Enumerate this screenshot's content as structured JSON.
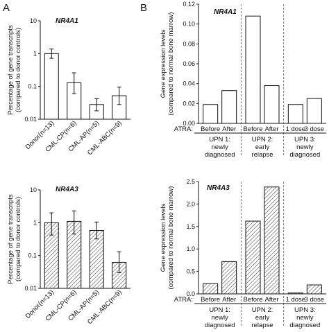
{
  "panels": {
    "left_letter": "A",
    "right_letter": "B"
  },
  "chart_data": [
    {
      "id": "A1",
      "type": "bar",
      "gene": "NR4A1",
      "ylabel_line1": "Percentage of gene transcripts",
      "ylabel_line2": "(compared to donor controls)",
      "scale": "log",
      "ylim": [
        0.01,
        10
      ],
      "ticks": [
        {
          "v": 10,
          "t": "10"
        },
        {
          "v": 1,
          "t": "1"
        },
        {
          "v": 0.1,
          "t": "0.1"
        },
        {
          "v": 0.01,
          "t": "0.01"
        }
      ],
      "categories": [
        "Donor(n=13)",
        "CML-CP(n=6)",
        "CML-AP(n=5)",
        "CML-ABC(n=9)"
      ],
      "values": [
        1.0,
        0.13,
        0.028,
        0.052
      ],
      "err_upper": [
        1.38,
        0.26,
        0.042,
        0.095
      ],
      "err_lower": [
        0.72,
        0.06,
        0.018,
        0.028
      ],
      "style": "open"
    },
    {
      "id": "A2",
      "type": "bar",
      "gene": "NR4A3",
      "ylabel_line1": "Percentage of gene transcripts",
      "ylabel_line2": "(compared to donor controls)",
      "scale": "log",
      "ylim": [
        0.01,
        10
      ],
      "ticks": [
        {
          "v": 10,
          "t": "10"
        },
        {
          "v": 1,
          "t": "1"
        },
        {
          "v": 0.1,
          "t": "0.1"
        },
        {
          "v": 0.01,
          "t": "0.01"
        }
      ],
      "categories": [
        "Donor(n=13)",
        "CML-CP(n=6)",
        "CML-AP(n=5)",
        "CML-ABC(n=9)"
      ],
      "values": [
        1.0,
        1.1,
        0.58,
        0.062
      ],
      "err_upper": [
        2.0,
        2.3,
        1.05,
        0.13
      ],
      "err_lower": [
        0.42,
        0.45,
        0.32,
        0.03
      ],
      "style": "hatched"
    },
    {
      "id": "B1",
      "type": "bar",
      "gene": "NR4A1",
      "ylabel_line1": "Gene expression levels",
      "ylabel_line2": "(compared to normal bone marrow)",
      "scale": "linear",
      "ylim": [
        0,
        0.12
      ],
      "ticks": [
        {
          "v": 0.12,
          "t": "0.12"
        },
        {
          "v": 0.1,
          "t": "0.10"
        },
        {
          "v": 0.08,
          "t": "0.08"
        },
        {
          "v": 0.06,
          "t": "0.06"
        },
        {
          "v": 0.04,
          "t": "0.04"
        },
        {
          "v": 0.02,
          "t": "0.02"
        },
        {
          "v": 0,
          "t": "0.00"
        }
      ],
      "atra_label": "ATRA:",
      "subcategories": [
        "Before",
        "After",
        "Before",
        "After",
        "1 dose",
        "3 dose"
      ],
      "values": [
        0.019,
        0.033,
        0.108,
        0.038,
        0.019,
        0.025
      ],
      "groups": [
        {
          "lines": [
            "UPN 1:",
            "newly",
            "diagnosed"
          ]
        },
        {
          "lines": [
            "UPN 2:",
            "early",
            "relapse"
          ]
        },
        {
          "lines": [
            "UPN 3:",
            "newly",
            "diagnosed"
          ]
        }
      ],
      "style": "open"
    },
    {
      "id": "B2",
      "type": "bar",
      "gene": "NR4A3",
      "ylabel_line1": "Gene expression levels",
      "ylabel_line2": "(compared to normal bone marrow)",
      "scale": "linear",
      "ylim": [
        0,
        2.5
      ],
      "ticks": [
        {
          "v": 2.5,
          "t": "2.5"
        },
        {
          "v": 2.0,
          "t": "2.0"
        },
        {
          "v": 1.5,
          "t": "1.5"
        },
        {
          "v": 1.0,
          "t": "1.0"
        },
        {
          "v": 0.5,
          "t": "0.5"
        },
        {
          "v": 0,
          "t": "0.0"
        }
      ],
      "atra_label": "ATRA:",
      "subcategories": [
        "Before",
        "After",
        "Before",
        "After",
        "1 dose",
        "3 dose"
      ],
      "values": [
        0.23,
        0.72,
        1.62,
        2.38,
        0.02,
        0.2
      ],
      "groups": [
        {
          "lines": [
            "UPN 1:",
            "newly",
            "diagnosed"
          ]
        },
        {
          "lines": [
            "UPN 2:",
            "early",
            "relapse"
          ]
        },
        {
          "lines": [
            "UPN 3:",
            "newly",
            "diagnosed"
          ]
        }
      ],
      "style": "hatched"
    }
  ]
}
